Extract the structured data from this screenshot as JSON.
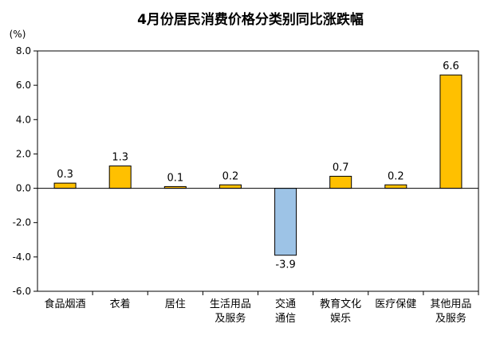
{
  "chart_data": {
    "type": "bar",
    "title": "4月份居民消费价格分类别同比涨跌幅",
    "ylabel": "(%)",
    "xlabel": "",
    "ylim": [
      -6.0,
      8.0
    ],
    "yticks": [
      "8.0",
      "6.0",
      "4.0",
      "2.0",
      "0.0",
      "-2.0",
      "-4.0",
      "-6.0"
    ],
    "ytick_values": [
      8,
      6,
      4,
      2,
      0,
      -2,
      -4,
      -6
    ],
    "grid": false,
    "categories": [
      [
        "食品烟酒"
      ],
      [
        "衣着"
      ],
      [
        "居住"
      ],
      [
        "生活用品",
        "及服务"
      ],
      [
        "交通",
        "通信"
      ],
      [
        "教育文化",
        "娱乐"
      ],
      [
        "医疗保健"
      ],
      [
        "其他用品",
        "及服务"
      ]
    ],
    "values": [
      0.3,
      1.3,
      0.1,
      0.2,
      -3.9,
      0.7,
      0.2,
      6.6
    ],
    "data_labels": [
      "0.3",
      "1.3",
      "0.1",
      "0.2",
      "-3.9",
      "0.7",
      "0.2",
      "6.6"
    ],
    "colors": {
      "positive_fill": "#FFC000",
      "negative_fill": "#9DC3E6",
      "bar_stroke": "#000000",
      "axis": "#000000"
    }
  }
}
